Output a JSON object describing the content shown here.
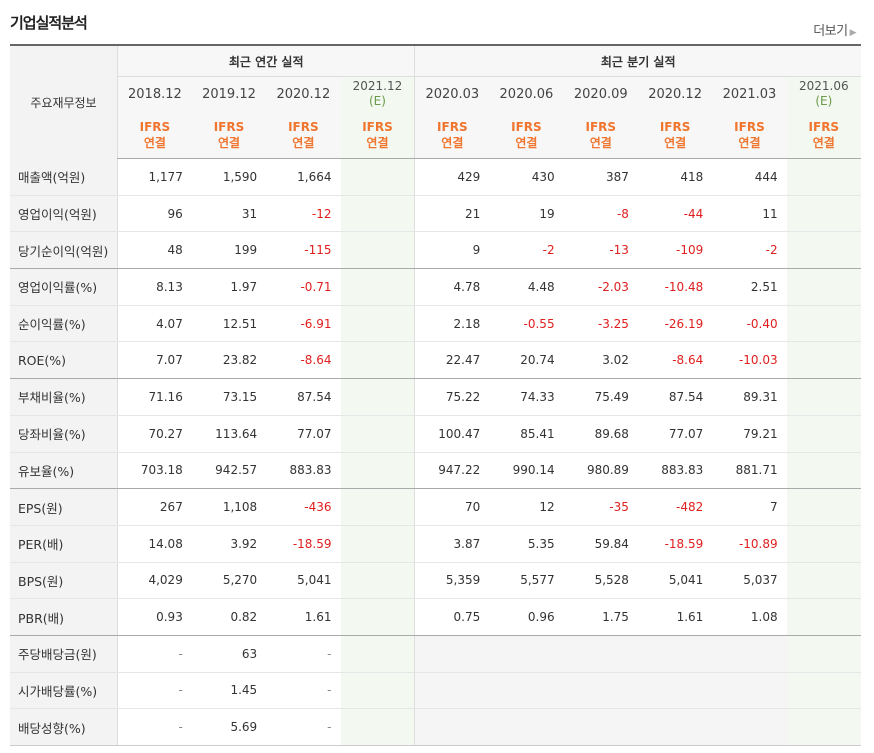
{
  "header": {
    "title": "기업실적분석",
    "more_label": "더보기",
    "more_arrow": "▶"
  },
  "table": {
    "row_header": "주요재무정보",
    "group_annual": "최근 연간 실적",
    "group_quarter": "최근 분기 실적",
    "periods": [
      "2018.12",
      "2019.12",
      "2020.12",
      "2021.12",
      "2020.03",
      "2020.06",
      "2020.09",
      "2020.12",
      "2021.03",
      "2021.06"
    ],
    "estimate_tag": "(E)",
    "basis_top": "IFRS",
    "basis_bottom": "연결",
    "rows": [
      {
        "label": "매출액(억원)",
        "values": [
          "1,177",
          "1,590",
          "1,664",
          "",
          "429",
          "430",
          "387",
          "418",
          "444",
          ""
        ]
      },
      {
        "label": "영업이익(억원)",
        "values": [
          "96",
          "31",
          "-12",
          "",
          "21",
          "19",
          "-8",
          "-44",
          "11",
          ""
        ]
      },
      {
        "label": "당기순이익(억원)",
        "values": [
          "48",
          "199",
          "-115",
          "",
          "9",
          "-2",
          "-13",
          "-109",
          "-2",
          ""
        ]
      },
      {
        "label": "영업이익률(%)",
        "values": [
          "8.13",
          "1.97",
          "-0.71",
          "",
          "4.78",
          "4.48",
          "-2.03",
          "-10.48",
          "2.51",
          ""
        ]
      },
      {
        "label": "순이익률(%)",
        "values": [
          "4.07",
          "12.51",
          "-6.91",
          "",
          "2.18",
          "-0.55",
          "-3.25",
          "-26.19",
          "-0.40",
          ""
        ]
      },
      {
        "label": "ROE(%)",
        "values": [
          "7.07",
          "23.82",
          "-8.64",
          "",
          "22.47",
          "20.74",
          "3.02",
          "-8.64",
          "-10.03",
          ""
        ]
      },
      {
        "label": "부채비율(%)",
        "values": [
          "71.16",
          "73.15",
          "87.54",
          "",
          "75.22",
          "74.33",
          "75.49",
          "87.54",
          "89.31",
          ""
        ]
      },
      {
        "label": "당좌비율(%)",
        "values": [
          "70.27",
          "113.64",
          "77.07",
          "",
          "100.47",
          "85.41",
          "89.68",
          "77.07",
          "79.21",
          ""
        ]
      },
      {
        "label": "유보율(%)",
        "values": [
          "703.18",
          "942.57",
          "883.83",
          "",
          "947.22",
          "990.14",
          "980.89",
          "883.83",
          "881.71",
          ""
        ]
      },
      {
        "label": "EPS(원)",
        "values": [
          "267",
          "1,108",
          "-436",
          "",
          "70",
          "12",
          "-35",
          "-482",
          "7",
          ""
        ]
      },
      {
        "label": "PER(배)",
        "values": [
          "14.08",
          "3.92",
          "-18.59",
          "",
          "3.87",
          "5.35",
          "59.84",
          "-18.59",
          "-10.89",
          ""
        ]
      },
      {
        "label": "BPS(원)",
        "values": [
          "4,029",
          "5,270",
          "5,041",
          "",
          "5,359",
          "5,577",
          "5,528",
          "5,041",
          "5,037",
          ""
        ]
      },
      {
        "label": "PBR(배)",
        "values": [
          "0.93",
          "0.82",
          "1.61",
          "",
          "0.75",
          "0.96",
          "1.75",
          "1.61",
          "1.08",
          ""
        ]
      },
      {
        "label": "주당배당금(원)",
        "values": [
          "-",
          "63",
          "-",
          "",
          "",
          "",
          "",
          "",
          "",
          ""
        ]
      },
      {
        "label": "시가배당률(%)",
        "values": [
          "-",
          "1.45",
          "-",
          "",
          "",
          "",
          "",
          "",
          "",
          ""
        ]
      },
      {
        "label": "배당성향(%)",
        "values": [
          "-",
          "5.69",
          "-",
          "",
          "",
          "",
          "",
          "",
          "",
          ""
        ]
      }
    ],
    "group_end_rows": [
      2,
      5,
      8,
      12
    ],
    "colors": {
      "negative": "#e01e1e",
      "basis": "#f0752e",
      "estimate": "#6a9a4a"
    }
  }
}
